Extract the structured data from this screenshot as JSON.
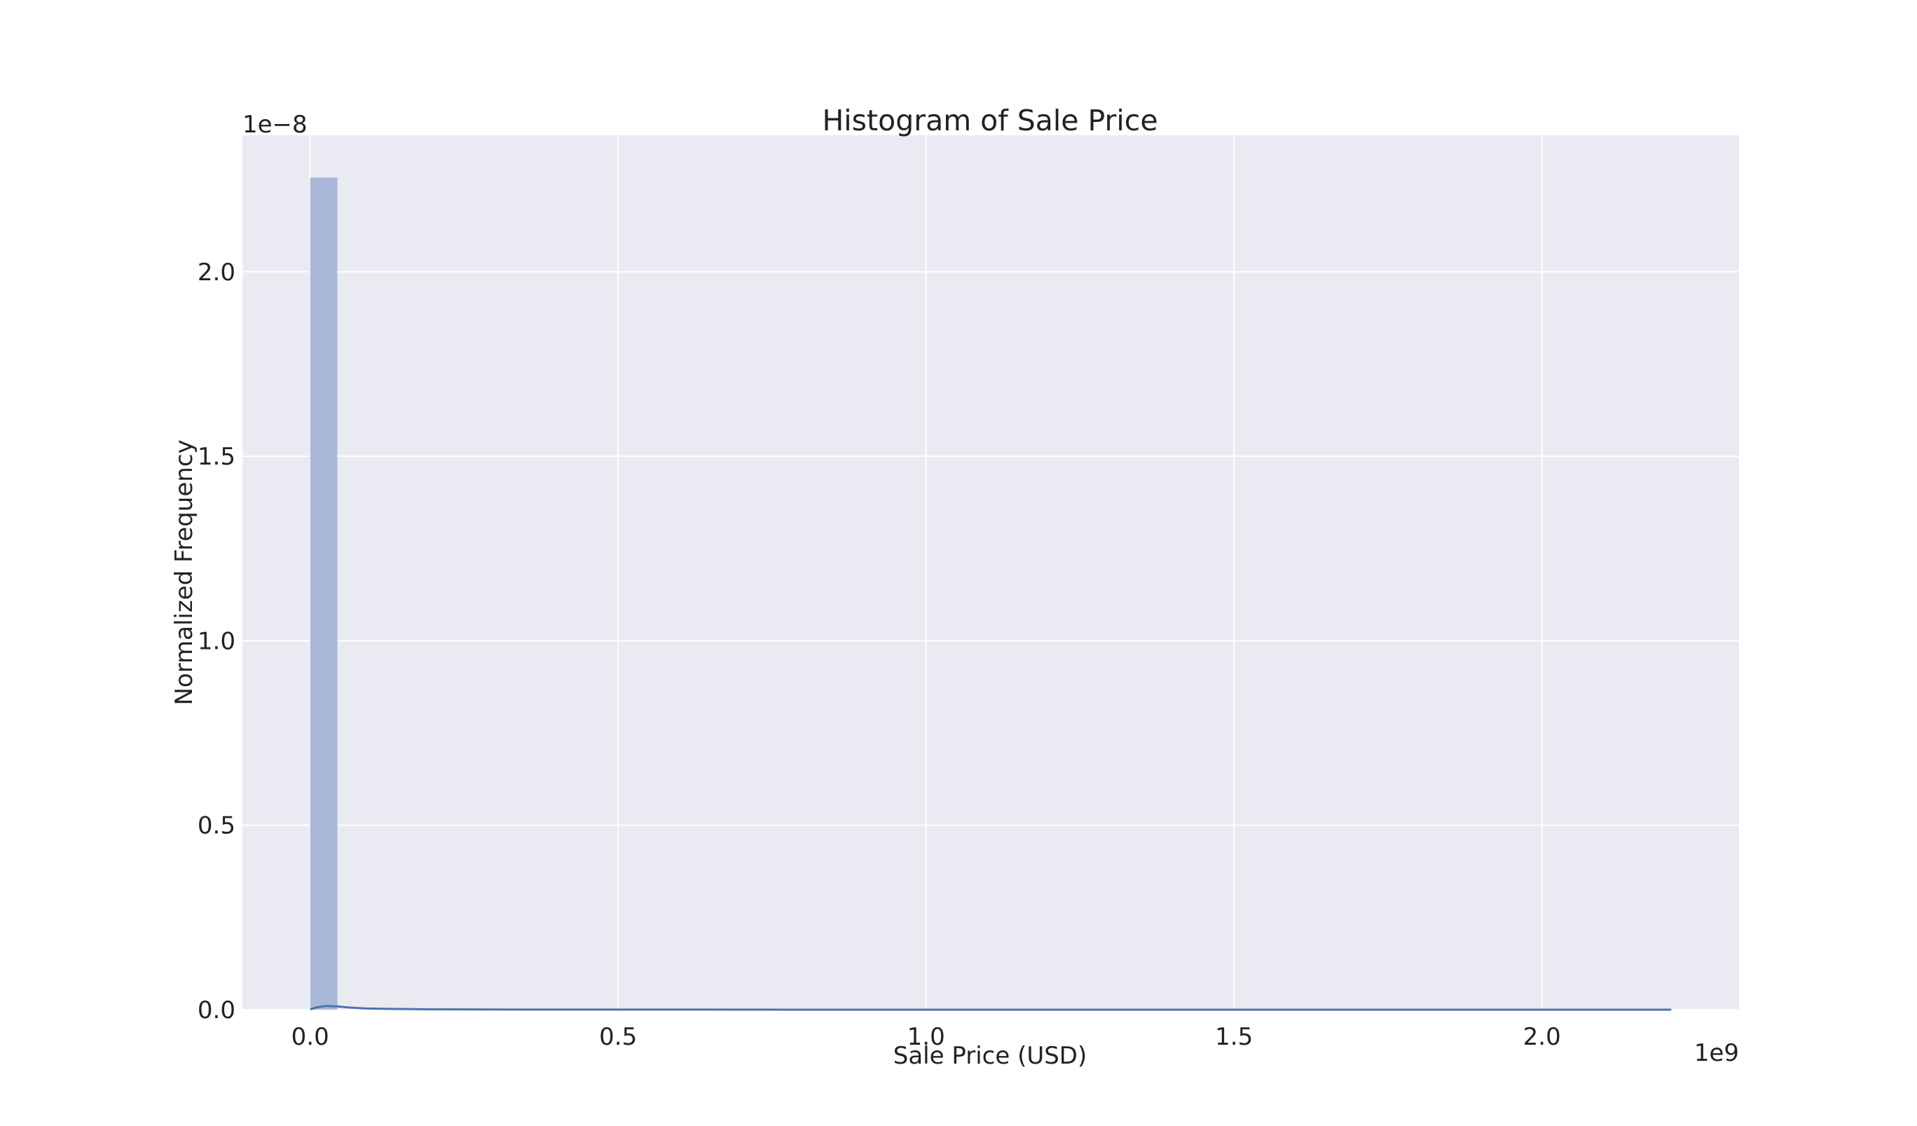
{
  "chart_data": {
    "type": "bar",
    "title": "Histogram of Sale Price",
    "xlabel": "Sale Price (USD)",
    "ylabel": "Normalized Frequency",
    "x_offset_text": "1e9",
    "y_offset_text": "1e−8",
    "x_scale": 1000000000,
    "y_scale": 1e-08,
    "xlim": [
      -110000000,
      2320000000
    ],
    "ylim": [
      0,
      2.37e-08
    ],
    "x_ticks": [
      0,
      500000000,
      1000000000,
      1500000000,
      2000000000
    ],
    "x_tick_labels": [
      "0.0",
      "0.5",
      "1.0",
      "1.5",
      "2.0"
    ],
    "y_ticks": [
      0,
      5e-09,
      1e-08,
      1.5e-08,
      2e-08
    ],
    "y_tick_labels": [
      "0.0",
      "0.5",
      "1.0",
      "1.5",
      "2.0"
    ],
    "grid": true,
    "bin_edges": [
      0,
      44200000,
      88400000
    ],
    "bin_values": [
      2.255e-08,
      0.0
    ],
    "kde": {
      "x": [
        0,
        10000000,
        25000000,
        44000000,
        60000000,
        90000000,
        130000000,
        200000000,
        300000000,
        500000000,
        1000000000,
        1500000000,
        2000000000,
        2210000000
      ],
      "y": [
        1e-11,
        6e-11,
        1e-10,
        9e-11,
        6e-11,
        3.5e-11,
        2e-11,
        1e-11,
        4e-12,
        1.5e-12,
        5e-13,
        3e-13,
        2e-13,
        1e-13
      ]
    },
    "colors": {
      "background": "#eaeaf2",
      "grid": "#ffffff",
      "bar": "#a9b8d8",
      "kde": "#4c72b0"
    }
  }
}
